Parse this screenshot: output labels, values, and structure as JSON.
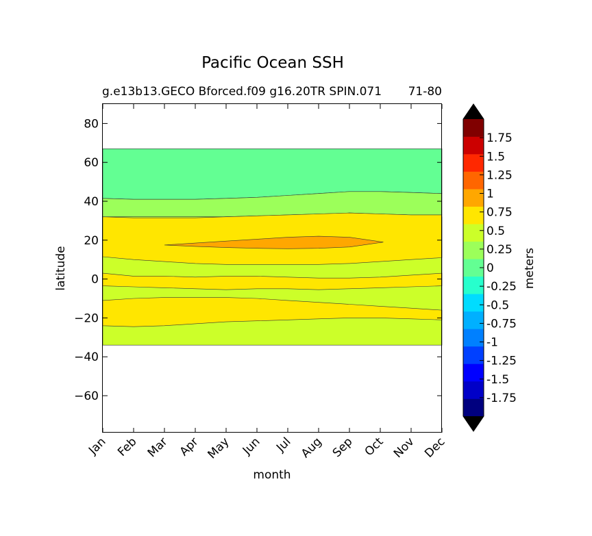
{
  "chart_data": {
    "type": "contourf",
    "title": "Pacific Ocean SSH",
    "subtitle_left": "g.e13b13.GECO Bforced.f09 g16.20TR SPIN.071",
    "subtitle_right": "71-80",
    "xlabel": "month",
    "ylabel": "latitude",
    "x_categories": [
      "Jan",
      "Feb",
      "Mar",
      "Apr",
      "May",
      "Jun",
      "Jul",
      "Aug",
      "Sep",
      "Oct",
      "Nov",
      "Dec"
    ],
    "x_tick_labels": [
      "Jan",
      "Feb",
      "Mar",
      "Apr",
      "May",
      "Jun",
      "Jul",
      "Aug",
      "Sep",
      "Oct",
      "Nov",
      "Dec"
    ],
    "ylim": [
      -79,
      90
    ],
    "y_ticks": [
      80,
      60,
      40,
      20,
      0,
      -20,
      -40,
      -60
    ],
    "y_tick_labels": [
      "80",
      "60",
      "40",
      "20",
      "0",
      "−20",
      "−40",
      "−60"
    ],
    "data_lat_range": [
      -34,
      67
    ],
    "colorbar": {
      "label": "meters",
      "levels": [
        -2,
        -1.75,
        -1.5,
        -1.25,
        -1,
        -0.75,
        -0.5,
        -0.25,
        0,
        0.25,
        0.5,
        0.75,
        1,
        1.25,
        1.5,
        1.75,
        2
      ],
      "tick_values": [
        1.75,
        1.5,
        1.25,
        1,
        0.75,
        0.5,
        0.25,
        0,
        -0.25,
        -0.5,
        -0.75,
        -1,
        -1.25,
        -1.5,
        -1.75
      ],
      "tick_labels": [
        "1.75",
        "1.5",
        "1.25",
        "1",
        "0.75",
        "0.5",
        "0.25",
        "0",
        "-0.25",
        "-0.5",
        "-0.75",
        "-1",
        "-1.25",
        "-1.5",
        "-1.75"
      ],
      "colors": [
        "#00007f",
        "#0000c8",
        "#0000ff",
        "#0040ff",
        "#0080ff",
        "#00b0ff",
        "#00dcff",
        "#27ffcd",
        "#63ff93",
        "#9cff5a",
        "#ccff29",
        "#ffe600",
        "#ffa700",
        "#ff6600",
        "#ff2800",
        "#cc0000",
        "#800000"
      ],
      "extend_low_color": "#000000",
      "extend_high_color": "#000000"
    },
    "regions": [
      {
        "level": "-0.25 to 0",
        "color": "#63ff93",
        "top": [
          [
            0,
            67
          ],
          [
            11,
            67
          ]
        ],
        "bottom": [
          [
            0,
            41.5
          ],
          [
            1,
            41
          ],
          [
            2,
            41
          ],
          [
            3,
            41
          ],
          [
            4,
            41.5
          ],
          [
            5,
            42
          ],
          [
            6,
            43
          ],
          [
            7,
            44
          ],
          [
            8,
            45
          ],
          [
            9,
            45
          ],
          [
            10,
            44.5
          ],
          [
            11,
            44
          ]
        ]
      },
      {
        "level": "0 to 0.25",
        "color": "#9cff5a",
        "top": [
          [
            0,
            41.5
          ],
          [
            1,
            41
          ],
          [
            2,
            41
          ],
          [
            3,
            41
          ],
          [
            4,
            41.5
          ],
          [
            5,
            42
          ],
          [
            6,
            43
          ],
          [
            7,
            44
          ],
          [
            8,
            45
          ],
          [
            9,
            45
          ],
          [
            10,
            44.5
          ],
          [
            11,
            44
          ]
        ],
        "bottom": [
          [
            0,
            32
          ],
          [
            1,
            31.5
          ],
          [
            2,
            31.5
          ],
          [
            3,
            31.5
          ],
          [
            4,
            32
          ],
          [
            5,
            32.5
          ],
          [
            6,
            33
          ],
          [
            7,
            33.5
          ],
          [
            8,
            34
          ],
          [
            9,
            33.5
          ],
          [
            10,
            33
          ],
          [
            11,
            33
          ]
        ]
      },
      {
        "level": "0.25 to 0.5",
        "color": "#ccff29",
        "top": [
          [
            0,
            32
          ],
          [
            11,
            32
          ]
        ],
        "bottom": [
          [
            0,
            -34
          ],
          [
            11,
            -34
          ]
        ]
      },
      {
        "level": "0.5 to 0.75",
        "color": "#ffe600",
        "top": [
          [
            0,
            32
          ],
          [
            1,
            31.5
          ],
          [
            2,
            31.5
          ],
          [
            3,
            31.5
          ],
          [
            4,
            32
          ],
          [
            5,
            32.5
          ],
          [
            6,
            33
          ],
          [
            7,
            33.5
          ],
          [
            8,
            34
          ],
          [
            9,
            33.5
          ],
          [
            10,
            33
          ],
          [
            11,
            33
          ]
        ],
        "bottom": [
          [
            0,
            11.5
          ],
          [
            1,
            10
          ],
          [
            2,
            9
          ],
          [
            3,
            8
          ],
          [
            4,
            7.5
          ],
          [
            5,
            7.5
          ],
          [
            6,
            7.5
          ],
          [
            7,
            7.5
          ],
          [
            8,
            8
          ],
          [
            9,
            9
          ],
          [
            10,
            10
          ],
          [
            11,
            11
          ]
        ]
      },
      {
        "level": "0.5 to 0.75",
        "color": "#ffe600",
        "top": [
          [
            0,
            3
          ],
          [
            1,
            1.5
          ],
          [
            2,
            1.5
          ],
          [
            3,
            1
          ],
          [
            4,
            1.5
          ],
          [
            5,
            1.5
          ],
          [
            6,
            1
          ],
          [
            7,
            0.5
          ],
          [
            8,
            0.5
          ],
          [
            9,
            1
          ],
          [
            10,
            2
          ],
          [
            11,
            3
          ]
        ],
        "bottom": [
          [
            0,
            -3.5
          ],
          [
            1,
            -4
          ],
          [
            2,
            -4.5
          ],
          [
            3,
            -5
          ],
          [
            4,
            -5.5
          ],
          [
            5,
            -5
          ],
          [
            6,
            -5
          ],
          [
            7,
            -5.5
          ],
          [
            8,
            -5
          ],
          [
            9,
            -4.5
          ],
          [
            10,
            -4
          ],
          [
            11,
            -3.5
          ]
        ]
      },
      {
        "level": "0.5 to 0.75",
        "color": "#ffe600",
        "top": [
          [
            0,
            -11
          ],
          [
            1,
            -10
          ],
          [
            2,
            -9.5
          ],
          [
            3,
            -9.5
          ],
          [
            4,
            -9.5
          ],
          [
            5,
            -10
          ],
          [
            6,
            -11
          ],
          [
            7,
            -12
          ],
          [
            8,
            -13
          ],
          [
            9,
            -14
          ],
          [
            10,
            -15
          ],
          [
            11,
            -16
          ]
        ],
        "bottom": [
          [
            0,
            -24
          ],
          [
            1,
            -24.5
          ],
          [
            2,
            -24
          ],
          [
            3,
            -23
          ],
          [
            4,
            -22
          ],
          [
            5,
            -21.5
          ],
          [
            6,
            -21
          ],
          [
            7,
            -20.5
          ],
          [
            8,
            -20
          ],
          [
            9,
            -20
          ],
          [
            10,
            -20.5
          ],
          [
            11,
            -21
          ]
        ]
      },
      {
        "level": "0.75 to 1",
        "color": "#ffa700",
        "top": [
          [
            2.0,
            17.5
          ],
          [
            3,
            18.5
          ],
          [
            4,
            19.5
          ],
          [
            5,
            20.5
          ],
          [
            6,
            21.5
          ],
          [
            7,
            22
          ],
          [
            8,
            21.5
          ],
          [
            9.1,
            19
          ]
        ],
        "bottom": [
          [
            2.0,
            17.5
          ],
          [
            3,
            16.8
          ],
          [
            4,
            16.2
          ],
          [
            5,
            15.8
          ],
          [
            6,
            15.6
          ],
          [
            7,
            15.8
          ],
          [
            8,
            16.5
          ],
          [
            9.1,
            19
          ]
        ]
      }
    ]
  }
}
